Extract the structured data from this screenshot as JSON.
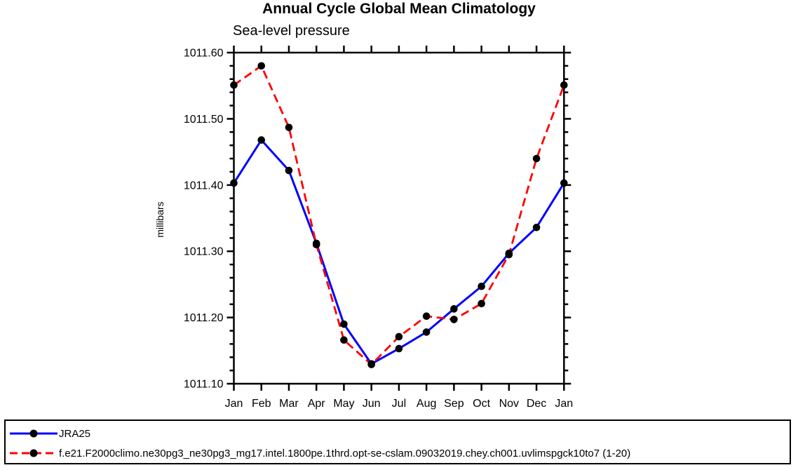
{
  "chart_data": {
    "type": "line",
    "title": "Annual Cycle Global Mean Climatology",
    "subtitle": "Sea-level pressure",
    "ylabel": "millibars",
    "xlabel": "",
    "categories": [
      "Jan",
      "Feb",
      "Mar",
      "Apr",
      "May",
      "Jun",
      "Jul",
      "Aug",
      "Sep",
      "Oct",
      "Nov",
      "Dec",
      "Jan"
    ],
    "ylim": [
      1011.1,
      1011.6
    ],
    "ytick_interval": 0.1,
    "yminor_interval": 0.02,
    "ytick_labels": [
      "1011.60",
      "1011.50",
      "1011.40",
      "1011.30",
      "1011.20",
      "1011.10"
    ],
    "grid": false,
    "frame": "box-with-outward-ticks",
    "legend_position": "bottom-left-box",
    "axis_color": "#000000",
    "background_color": "#ffffff",
    "series": [
      {
        "name": "JRA25",
        "color": "#0000ff",
        "line_style": "solid",
        "marker": "filled-circle",
        "marker_color": "#000000",
        "values": [
          1011.403,
          1011.468,
          1011.422,
          1011.312,
          1011.19,
          1011.13,
          1011.153,
          1011.178,
          1011.213,
          1011.247,
          1011.297,
          1011.336,
          1011.403
        ]
      },
      {
        "name": "f.e21.F2000climo.ne30pg3_ne30pg3_mg17.intel.1800pe.1thrd.opt-se-cslam.09032019.chey.ch001.uvlimspgck10to7 (1-20)",
        "color": "#ff0000",
        "line_style": "dashed",
        "marker": "filled-circle",
        "marker_color": "#000000",
        "values": [
          1011.551,
          1011.58,
          1011.487,
          1011.31,
          1011.166,
          1011.129,
          1011.171,
          1011.202,
          1011.197,
          1011.221,
          1011.295,
          1011.44,
          1011.551
        ]
      }
    ]
  }
}
